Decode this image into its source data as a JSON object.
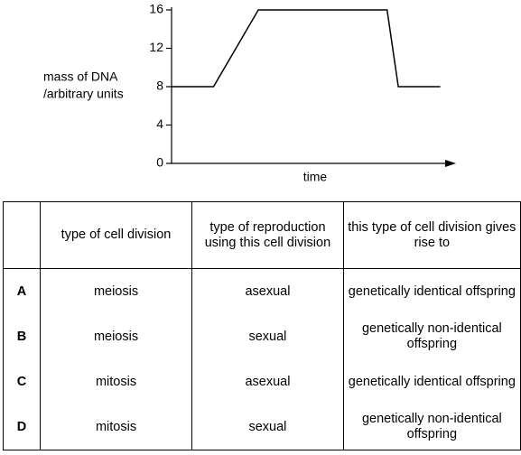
{
  "chart_data": {
    "type": "line",
    "ylabel": [
      "mass of DNA",
      "/arbitrary units"
    ],
    "xlabel": "time",
    "x": [
      0,
      1.5,
      3.1,
      7.7,
      8.1,
      9.6
    ],
    "values": [
      8,
      8,
      16,
      16,
      8,
      8
    ],
    "color": "#000000",
    "xlim": [
      0,
      10
    ],
    "ylim": [
      0,
      16
    ],
    "yticks": [
      0,
      4,
      8,
      12,
      16
    ]
  },
  "table": {
    "headers": [
      "type of cell division",
      "type of reproduction using this cell division",
      "this type of cell division gives rise to"
    ],
    "rows": [
      [
        "A",
        "meiosis",
        "asexual",
        "genetically identical offspring"
      ],
      [
        "B",
        "meiosis",
        "sexual",
        "genetically non-identical offspring"
      ],
      [
        "C",
        "mitosis",
        "asexual",
        "genetically identical offspring"
      ],
      [
        "D",
        "mitosis",
        "sexual",
        "genetically non-identical offspring"
      ]
    ]
  }
}
